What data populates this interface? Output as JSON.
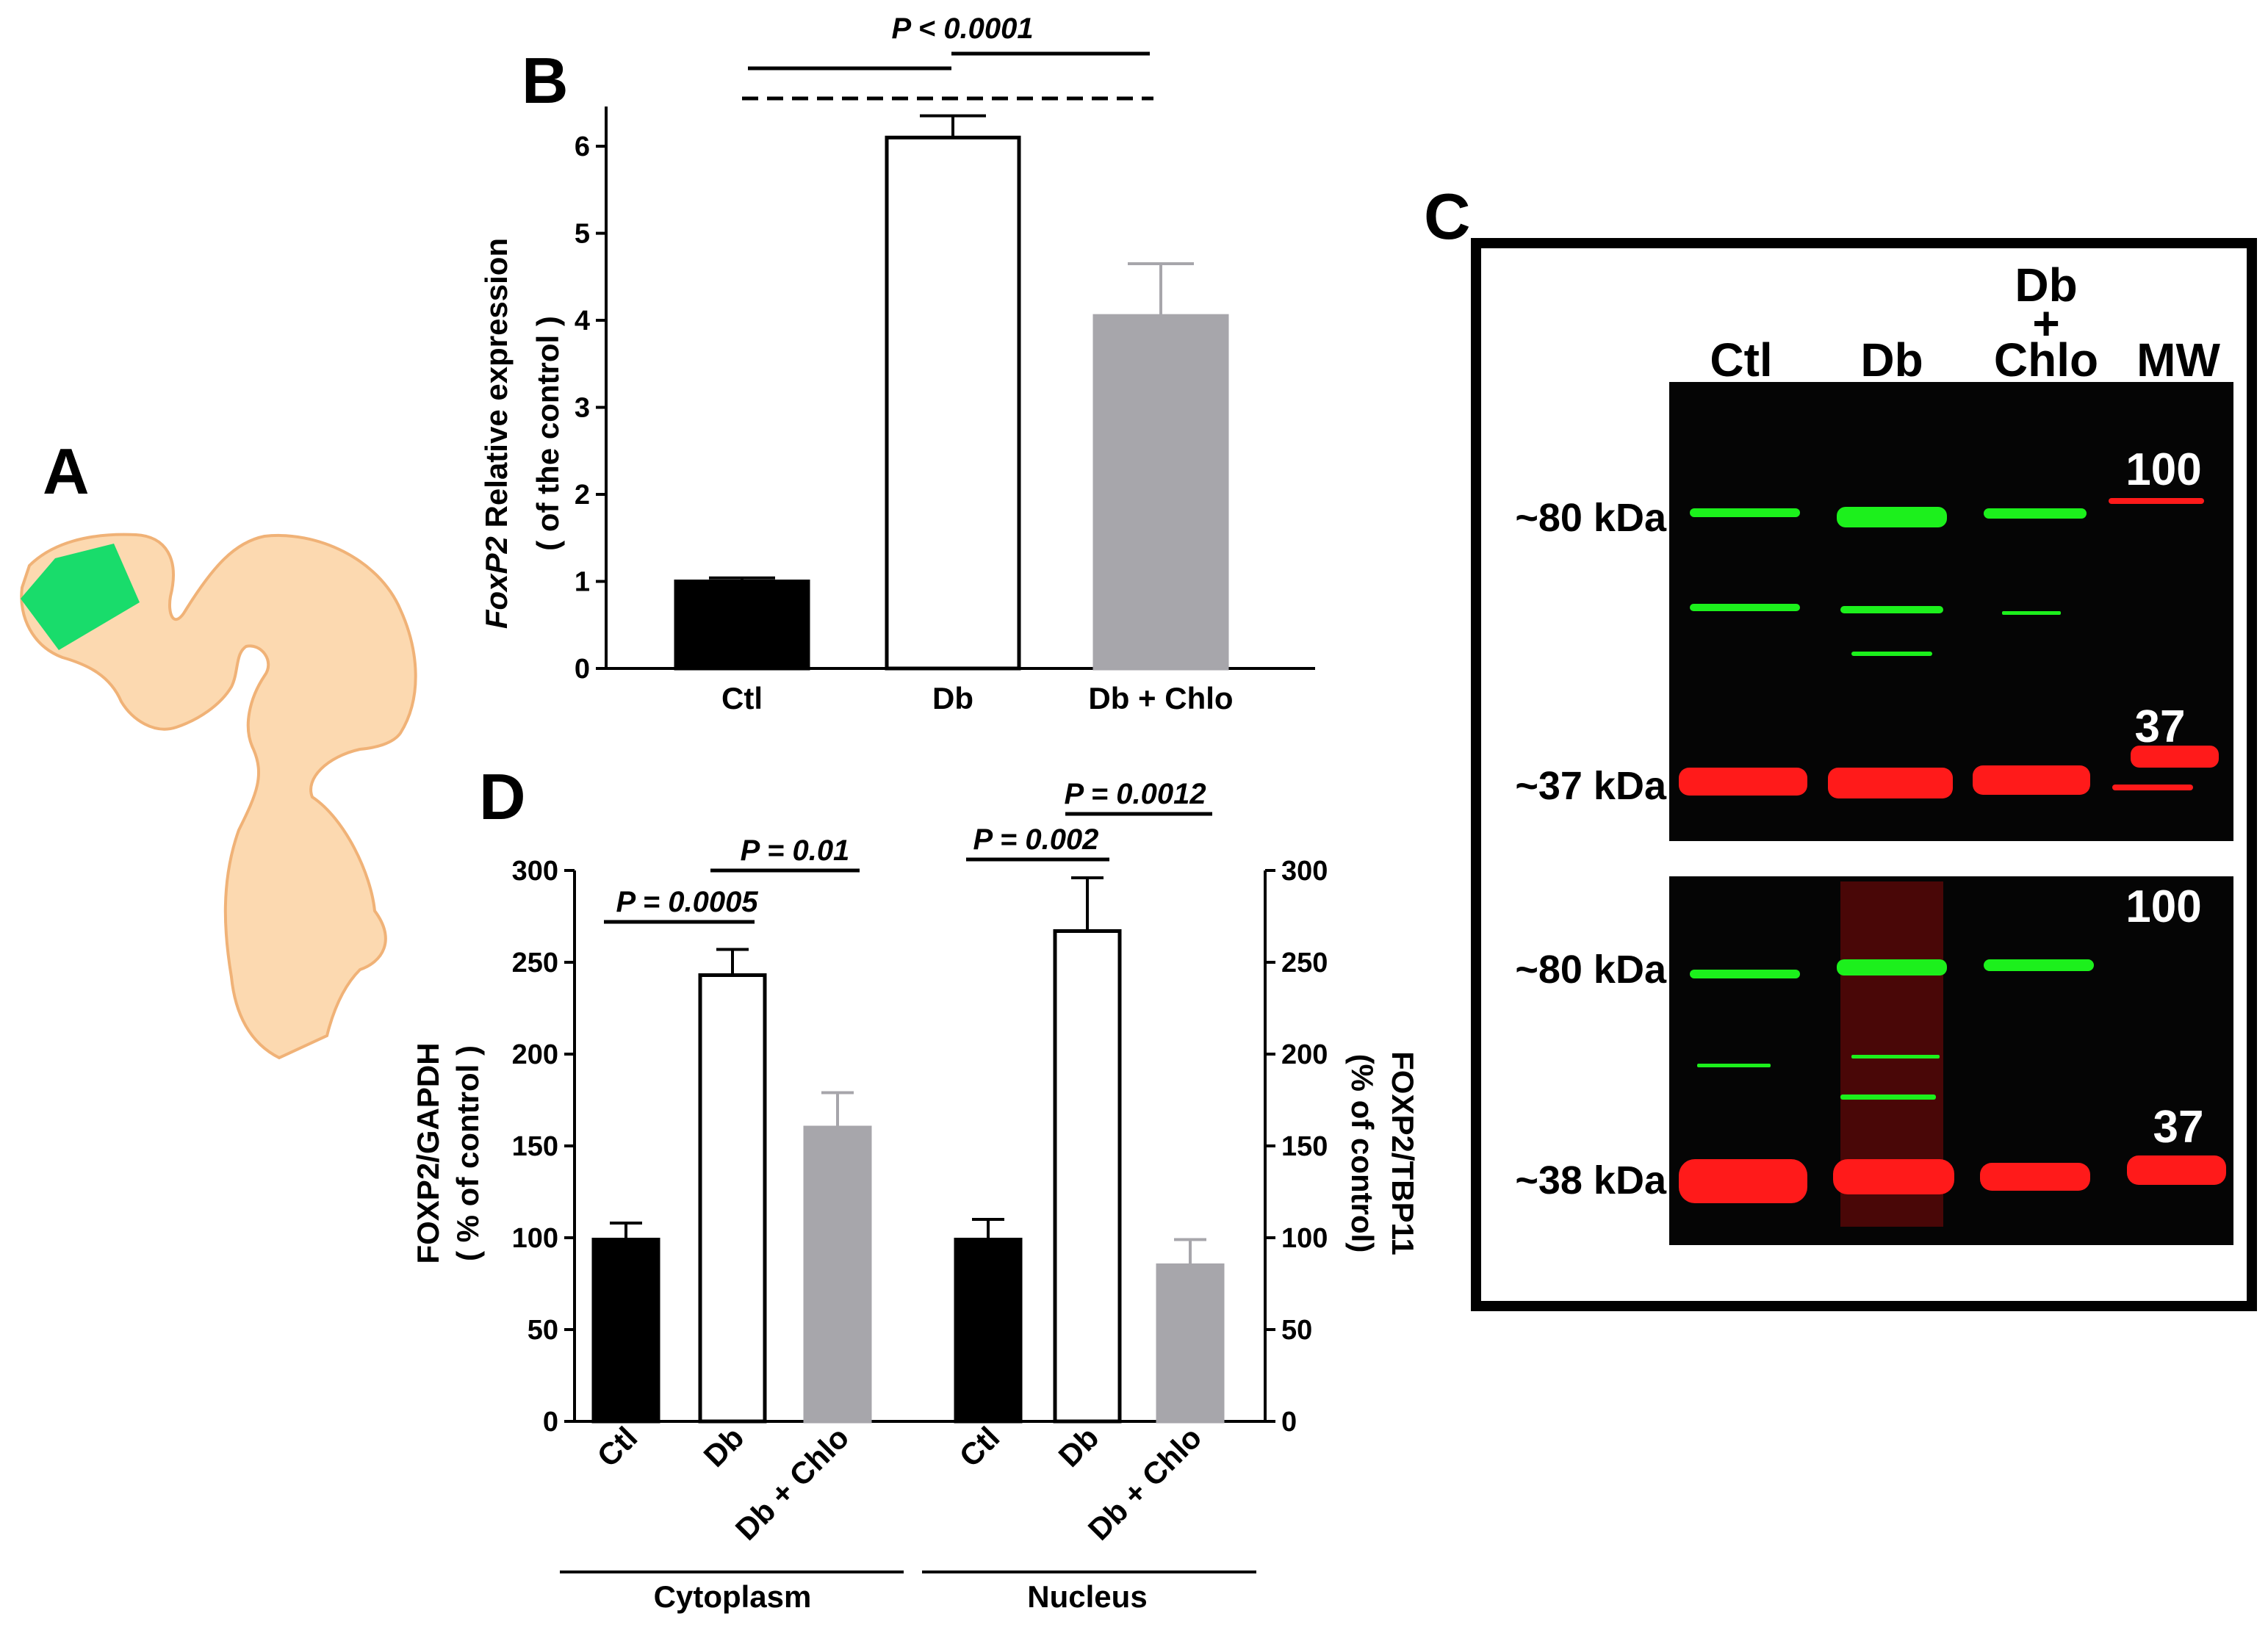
{
  "panels": {
    "a": "A",
    "b": "B",
    "c": "C",
    "d": "D"
  },
  "colors": {
    "ctl": "#000000",
    "db": "#ffffff",
    "chlo": "#a7a6ab",
    "brain": "#fcd9b0",
    "brain_edge": "#f0b277",
    "region": "#19dc6b",
    "green_band": "#1cf01c",
    "red_band": "#ff1a1a"
  },
  "chart_data": [
    {
      "id": "B",
      "type": "bar",
      "categories": [
        "Ctl",
        "Db",
        "Db + Chlo"
      ],
      "values": [
        1.0,
        6.1,
        4.05
      ],
      "errors": [
        0.04,
        0.25,
        0.6
      ],
      "ylim": [
        0,
        6.6
      ],
      "yticks": [
        "0",
        "1",
        "2",
        "3",
        "4",
        "5",
        "6"
      ],
      "ylabel_italic": "FoxP2",
      "ylabel_rest": " Relative expression",
      "ylabel_line2": "( of the control )",
      "significance": "P < 0.0001"
    },
    {
      "id": "D",
      "type": "bar",
      "groups": [
        {
          "name": "Cytoplasm",
          "categories": [
            "Ctl",
            "Db",
            "Db + Chlo"
          ],
          "values": [
            99,
            243,
            160
          ],
          "errors": [
            9,
            14,
            19
          ],
          "comparisons": [
            {
              "label": "P = 0.0005",
              "pair": [
                "Ctl",
                "Db"
              ]
            },
            {
              "label": "P = 0.01",
              "pair": [
                "Db",
                "Db + Chlo"
              ]
            }
          ]
        },
        {
          "name": "Nucleus",
          "categories": [
            "Ctl",
            "Db",
            "Db + Chlo"
          ],
          "values": [
            99,
            267,
            85
          ],
          "errors": [
            11,
            29,
            14
          ],
          "comparisons": [
            {
              "label": "P = 0.002",
              "pair": [
                "Ctl",
                "Db"
              ]
            },
            {
              "label": "P = 0.0012",
              "pair": [
                "Db",
                "Db + Chlo"
              ]
            }
          ]
        }
      ],
      "ylim": [
        0,
        300
      ],
      "yticks": [
        "0",
        "50",
        "100",
        "150",
        "200",
        "250",
        "300"
      ],
      "ylabel_left": "FOXP2/GAPDH",
      "ylabel_left2": "( % of control )",
      "ylabel_right": "FOXP2/TBP11",
      "ylabel_right2": "(% of control)"
    }
  ],
  "western_blot": {
    "lanes": [
      "Ctl",
      "Db",
      "Db",
      "+",
      "Chlo",
      "MW"
    ],
    "top_blot": {
      "kda_upper": "~80 kDa",
      "kda_lower": "~37 kDa",
      "mw_upper": "100",
      "mw_lower": "37"
    },
    "bottom_blot": {
      "kda_upper": "~80 kDa",
      "kda_lower": "~38 kDa",
      "mw_upper": "100",
      "mw_lower": "37"
    }
  }
}
